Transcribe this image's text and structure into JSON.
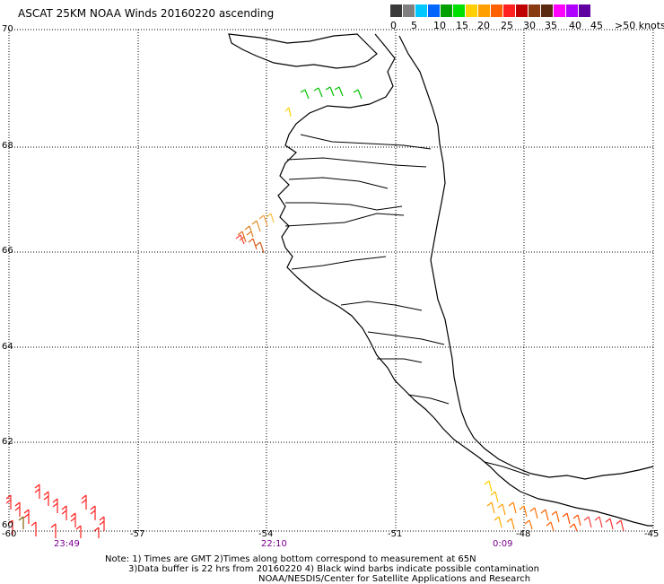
{
  "title": "ASCAT 25KM NOAA Winds 20160220 ascending",
  "scale": {
    "labels": [
      "0",
      "5",
      "10",
      "15",
      "20",
      "25",
      "30",
      "35",
      "40",
      "45",
      ">50 knots"
    ],
    "colors": [
      "#3a3a3a",
      "#808080",
      "#00c8ff",
      "#0066ff",
      "#00a000",
      "#00e000",
      "#ffd000",
      "#ffa000",
      "#ff6000",
      "#ff2020",
      "#c00000",
      "#8a3a10",
      "#5a2a10",
      "#ff00ff",
      "#b000ff",
      "#6000a0"
    ]
  },
  "grid": {
    "lat_labels": [
      "70",
      "68",
      "66",
      "64",
      "62",
      "60"
    ],
    "lon_labels": [
      "-60",
      "-57",
      "-54",
      "-51",
      "-48",
      "-45"
    ]
  },
  "times": [
    "23:49",
    "22:10",
    "0:09"
  ],
  "notes": {
    "line1": "Note: 1) Times are GMT 2)Times along bottom correspond to measurement at 65N",
    "line2": "3)Data buffer is 22 hrs from 20160220 4) Black wind barbs indicate possible contamination",
    "line3": "NOAA/NESDIS/Center for Satellite Applications and Research"
  }
}
